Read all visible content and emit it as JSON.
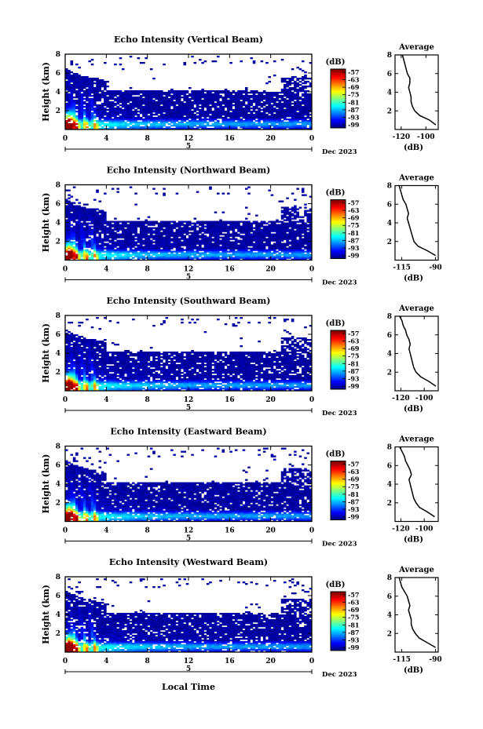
{
  "figure": {
    "x_axis_label": "Local Time",
    "colorbar_unit": "(dB)",
    "colorbar_ticks": [
      "-57",
      "-63",
      "-69",
      "-75",
      "-81",
      "-87",
      "-93",
      "-99"
    ],
    "average_title": "Average",
    "average_xlabel": "(dB)"
  },
  "chart_data": [
    {
      "type": "heatmap",
      "title": "Echo Intensity (Vertical Beam)",
      "ylabel": "Height (km)",
      "x_ticks": [
        "0",
        "4",
        "8",
        "12",
        "16",
        "20",
        "0"
      ],
      "y_ticks": [
        "8",
        "6",
        "4",
        "2"
      ],
      "date_center": "5",
      "date_right": "Dec 2023",
      "xlim": [
        0,
        24
      ],
      "ylim": [
        0,
        8
      ],
      "colorscale": {
        "min": -99,
        "max": -57,
        "unit": "dB"
      },
      "average": {
        "type": "line",
        "title": "Average",
        "xlabel": "(dB)",
        "x_ticks": [
          "-120",
          "-100"
        ],
        "y_ticks": [
          "8",
          "6",
          "4",
          "2"
        ],
        "xlim": [
          -125,
          -90
        ],
        "ylim": [
          0,
          8
        ],
        "heights": [
          0.5,
          1.0,
          1.5,
          2.0,
          2.5,
          3.0,
          3.5,
          4.0,
          4.5,
          5.0,
          5.5,
          6.0,
          6.5,
          7.0,
          7.5,
          8.0
        ],
        "values": [
          -92,
          -97,
          -105,
          -109,
          -111,
          -112,
          -112,
          -113,
          -114,
          -113,
          -113,
          -115,
          -116,
          -117,
          -118,
          -119
        ]
      }
    },
    {
      "type": "heatmap",
      "title": "Echo Intensity (Northward Beam)",
      "ylabel": "Height (km)",
      "x_ticks": [
        "0",
        "4",
        "8",
        "12",
        "16",
        "20",
        "0"
      ],
      "y_ticks": [
        "8",
        "6",
        "4",
        "2"
      ],
      "date_center": "5",
      "date_right": "Dec 2023",
      "xlim": [
        0,
        24
      ],
      "ylim": [
        0,
        8
      ],
      "colorscale": {
        "min": -99,
        "max": -57,
        "unit": "dB"
      },
      "average": {
        "type": "line",
        "title": "Average",
        "xlabel": "(dB)",
        "x_ticks": [
          "-115",
          "-90"
        ],
        "y_ticks": [
          "8",
          "6",
          "4",
          "2"
        ],
        "xlim": [
          -120,
          -88
        ],
        "ylim": [
          0,
          8
        ],
        "heights": [
          0.5,
          1.0,
          1.5,
          2.0,
          2.5,
          3.0,
          3.5,
          4.0,
          4.5,
          5.0,
          5.5,
          6.0,
          6.5,
          7.0,
          7.5,
          8.0
        ],
        "values": [
          -90,
          -96,
          -103,
          -106,
          -107,
          -108,
          -109,
          -110,
          -111,
          -110,
          -111,
          -112,
          -114,
          -115,
          -116,
          -117
        ]
      }
    },
    {
      "type": "heatmap",
      "title": "Echo Intensity (Southward Beam)",
      "ylabel": "Height (km)",
      "x_ticks": [
        "0",
        "4",
        "8",
        "12",
        "16",
        "20",
        "0"
      ],
      "y_ticks": [
        "8",
        "6",
        "4",
        "2"
      ],
      "date_center": "5",
      "date_right": "Dec 2023",
      "xlim": [
        0,
        24
      ],
      "ylim": [
        0,
        8
      ],
      "colorscale": {
        "min": -99,
        "max": -57,
        "unit": "dB"
      },
      "average": {
        "type": "line",
        "title": "Average",
        "xlabel": "(dB)",
        "x_ticks": [
          "-120",
          "-100"
        ],
        "y_ticks": [
          "8",
          "6",
          "4",
          "2"
        ],
        "xlim": [
          -125,
          -88
        ],
        "ylim": [
          0,
          8
        ],
        "heights": [
          0.5,
          1.0,
          1.5,
          2.0,
          2.5,
          3.0,
          3.5,
          4.0,
          4.5,
          5.0,
          5.5,
          6.0,
          6.5,
          7.0,
          7.5,
          8.0
        ],
        "values": [
          -90,
          -96,
          -103,
          -107,
          -109,
          -110,
          -111,
          -112,
          -113,
          -112,
          -113,
          -115,
          -116,
          -118,
          -119,
          -121
        ]
      }
    },
    {
      "type": "heatmap",
      "title": "Echo Intensity (Eastward Beam)",
      "ylabel": "Height (km)",
      "x_ticks": [
        "0",
        "4",
        "8",
        "12",
        "16",
        "20",
        "0"
      ],
      "y_ticks": [
        "8",
        "6",
        "4",
        "2"
      ],
      "date_center": "5",
      "date_right": "Dec 2023",
      "xlim": [
        0,
        24
      ],
      "ylim": [
        0,
        8
      ],
      "colorscale": {
        "min": -99,
        "max": -57,
        "unit": "dB"
      },
      "average": {
        "type": "line",
        "title": "Average",
        "xlabel": "(dB)",
        "x_ticks": [
          "-120",
          "-100"
        ],
        "y_ticks": [
          "8",
          "6",
          "4",
          "2"
        ],
        "xlim": [
          -125,
          -88
        ],
        "ylim": [
          0,
          8
        ],
        "heights": [
          0.5,
          1.0,
          1.5,
          2.0,
          2.5,
          3.0,
          3.5,
          4.0,
          4.5,
          5.0,
          5.5,
          6.0,
          6.5,
          7.0,
          7.5,
          8.0
        ],
        "values": [
          -91,
          -97,
          -104,
          -107,
          -109,
          -110,
          -111,
          -112,
          -113,
          -111,
          -112,
          -114,
          -116,
          -117,
          -119,
          -121
        ]
      }
    },
    {
      "type": "heatmap",
      "title": "Echo Intensity (Westward Beam)",
      "ylabel": "Height (km)",
      "x_ticks": [
        "0",
        "4",
        "8",
        "12",
        "16",
        "20",
        "0"
      ],
      "y_ticks": [
        "8",
        "6",
        "4",
        "2"
      ],
      "date_center": "5",
      "date_right": "Dec 2023",
      "xlim": [
        0,
        24
      ],
      "ylim": [
        0,
        8
      ],
      "colorscale": {
        "min": -99,
        "max": -57,
        "unit": "dB"
      },
      "average": {
        "type": "line",
        "title": "Average",
        "xlabel": "(dB)",
        "x_ticks": [
          "-115",
          "-90"
        ],
        "y_ticks": [
          "8",
          "6",
          "4",
          "2"
        ],
        "xlim": [
          -120,
          -88
        ],
        "ylim": [
          0,
          8
        ],
        "heights": [
          0.5,
          1.0,
          1.5,
          2.0,
          2.5,
          3.0,
          3.5,
          4.0,
          4.5,
          5.0,
          5.5,
          6.0,
          6.5,
          7.0,
          7.5,
          8.0
        ],
        "values": [
          -90,
          -96,
          -102,
          -105,
          -107,
          -108,
          -108,
          -109,
          -110,
          -109,
          -110,
          -111,
          -113,
          -115,
          -116,
          -117
        ]
      }
    }
  ]
}
